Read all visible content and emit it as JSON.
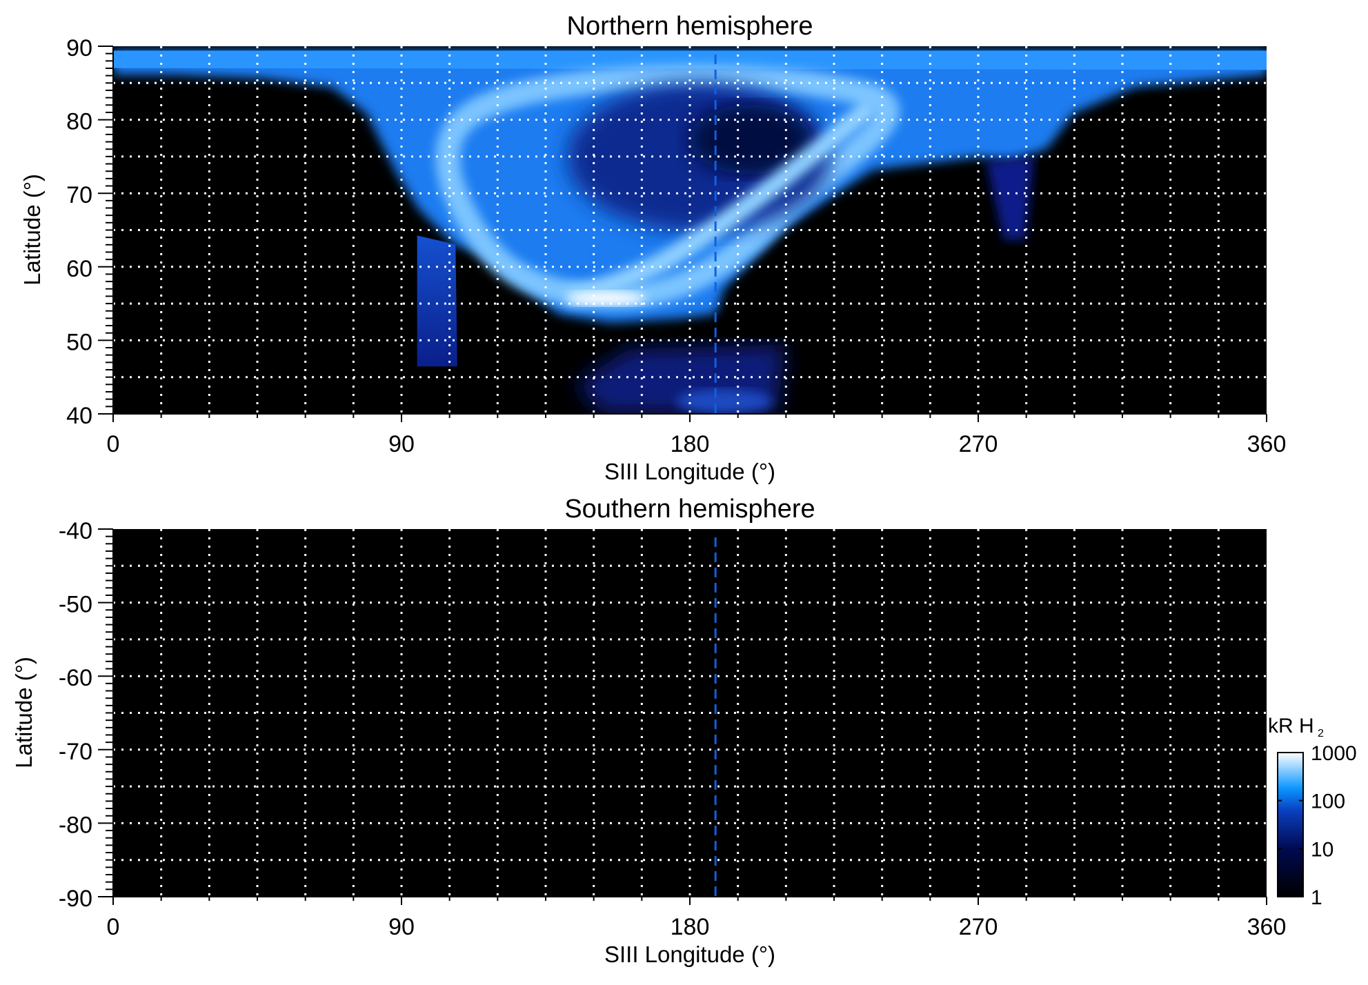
{
  "chart_data": [
    {
      "type": "heatmap",
      "title": "Northern hemisphere",
      "xlabel": "SIII Longitude (°)",
      "ylabel": "Latitude (°)",
      "xlim": [
        0,
        360
      ],
      "ylim": [
        40,
        90
      ],
      "xticks": [
        "0",
        "90",
        "180",
        "270",
        "360"
      ],
      "yticks": [
        "40",
        "50",
        "60",
        "70",
        "80",
        "90"
      ],
      "grid": true,
      "grid_style": "dotted white, every 15° longitude and 5° latitude",
      "marker_line_longitude": 188,
      "description_of_emission": "bright auroral emission spanning about 60°-330° longitude, reaching down to about 53° latitude near 150-190° longitude"
    },
    {
      "type": "heatmap",
      "title": "Southern hemisphere",
      "xlabel": "SIII Longitude (°)",
      "ylabel": "Latitude (°)",
      "xlim": [
        0,
        360
      ],
      "ylim": [
        -90,
        -40
      ],
      "xticks": [
        "0",
        "90",
        "180",
        "270",
        "360"
      ],
      "yticks": [
        "-40",
        "-50",
        "-60",
        "-70",
        "-80",
        "-90"
      ],
      "grid": true,
      "marker_line_longitude": 188
    }
  ],
  "colorbar": {
    "label_main": "kR H",
    "label_sub": "2",
    "scale": "log",
    "range": [
      1,
      1000
    ],
    "ticks": [
      "1",
      "10",
      "100",
      "1000"
    ],
    "colors": [
      "#000000",
      "#000a50",
      "#0a2fb0",
      "#0a90ff",
      "#ffffff"
    ]
  },
  "colors": {
    "marker_line": "#1060e0",
    "grid": "#ffffff",
    "background": "#000000"
  }
}
